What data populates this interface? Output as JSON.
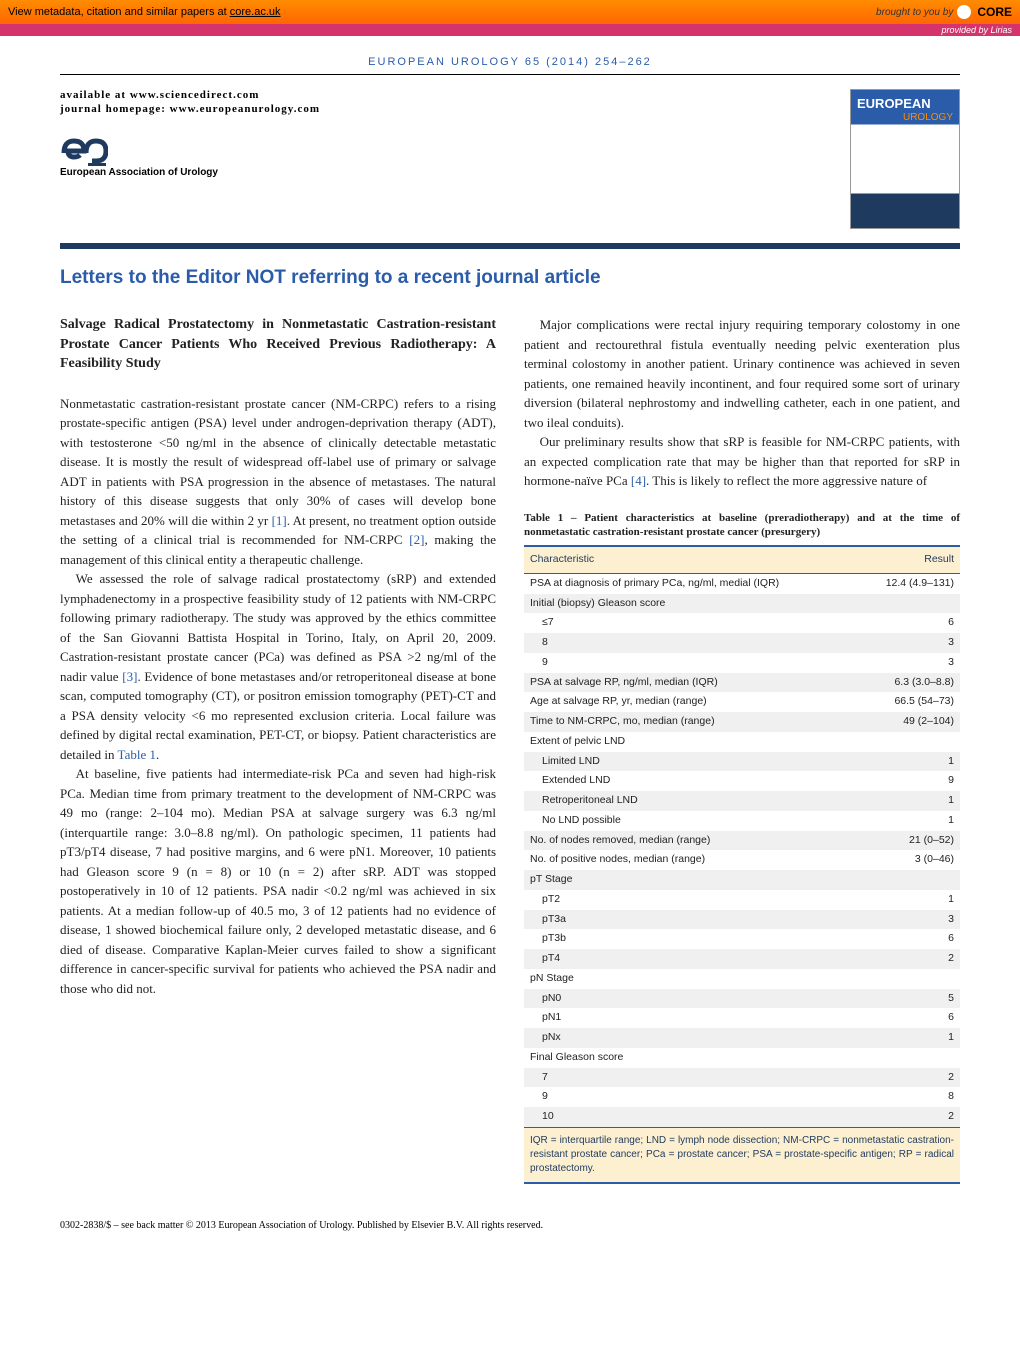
{
  "banner": {
    "left_prefix": "View metadata, citation and similar papers at ",
    "left_link": "core.ac.uk",
    "right_prefix": "brought to you by",
    "core_label": "CORE",
    "provided_by": "provided by Lirias"
  },
  "journal_ref": "EUROPEAN UROLOGY 65 (2014) 254–262",
  "masthead": {
    "available": "available at www.sciencedirect.com",
    "homepage": "journal homepage: www.europeanurology.com",
    "org": "European Association of Urology",
    "cover_title": "EUROPEAN",
    "cover_sub": "UROLOGY"
  },
  "section_title": "Letters to the Editor NOT referring to a recent journal article",
  "article": {
    "title": "Salvage Radical Prostatectomy in Nonmetastatic Castration-resistant Prostate Cancer Patients Who Received Previous Radiotherapy: A Feasibility Study",
    "p1a": "Nonmetastatic castration-resistant prostate cancer (NM-CRPC) refers to a rising prostate-specific antigen (PSA) level under androgen-deprivation therapy (ADT), with testosterone <50 ng/ml in the absence of clinically detectable metastatic disease. It is mostly the result of widespread off-label use of primary or salvage ADT in patients with PSA progression in the absence of metastases. The natural history of this disease suggests that only 30% of cases will develop bone metastases and 20% will die within 2 yr ",
    "ref1": "[1]",
    "p1b": ". At present, no treatment option outside the setting of a clinical trial is recommended for NM-CRPC ",
    "ref2": "[2]",
    "p1c": ", making the management of this clinical entity a therapeutic challenge.",
    "p2a": "We assessed the role of salvage radical prostatectomy (sRP) and extended lymphadenectomy in a prospective feasibility study of 12 patients with NM-CRPC following primary radiotherapy. The study was approved by the ethics committee of the San Giovanni Battista Hospital in Torino, Italy, on April 20, 2009. Castration-resistant prostate cancer (PCa) was defined as PSA >2 ng/ml of the nadir value ",
    "ref3": "[3]",
    "p2b": ". Evidence of bone metastases and/or retroperitoneal disease at bone scan, computed tomography (CT), or positron emission tomography (PET)-CT and a PSA density velocity <6 mo represented exclusion criteria. Local failure was defined by digital rectal examination, PET-CT, or biopsy. Patient characteristics are detailed in ",
    "tableref": "Table 1",
    "p2c": ".",
    "p3": "At baseline, five patients had intermediate-risk PCa and seven had high-risk PCa. Median time from primary treatment to the development of NM-CRPC was 49 mo (range: 2–104 mo). Median PSA at salvage surgery was 6.3 ng/ml (interquartile range: 3.0–8.8 ng/ml). On pathologic specimen, 11 patients had pT3/pT4 disease, 7 had positive margins, and 6 were pN1. Moreover, 10 patients had Gleason score 9 (n = 8) or 10 (n = 2) after sRP. ADT was stopped postoperatively in 10 of 12 patients. PSA nadir <0.2 ng/ml was achieved in six patients. At a median follow-up of 40.5 mo, 3 of 12 patients had no evidence of disease, 1 showed biochemical failure only, 2 developed metastatic disease, and 6 died of disease. Comparative Kaplan-Meier curves failed to show a significant difference in cancer-specific survival for patients who achieved the PSA nadir and those who did not.",
    "p4": "Major complications were rectal injury requiring temporary colostomy in one patient and rectourethral fistula eventually needing pelvic exenteration plus terminal colostomy in another patient. Urinary continence was achieved in seven patients, one remained heavily incontinent, and four required some sort of urinary diversion (bilateral nephrostomy and indwelling catheter, each in one patient, and two ileal conduits).",
    "p5a": "Our preliminary results show that sRP is feasible for NM-CRPC patients, with an expected complication rate that may be higher than that reported for sRP in hormone-naïve PCa ",
    "ref4": "[4]",
    "p5b": ". This is likely to reflect the more aggressive nature of"
  },
  "table": {
    "caption": "Table 1 – Patient characteristics at baseline (preradiotherapy) and at the time of nonmetastatic castration-resistant prostate cancer (presurgery)",
    "head_char": "Characteristic",
    "head_res": "Result",
    "rows": [
      {
        "c": "PSA at diagnosis of primary PCa, ng/ml, medial (IQR)",
        "r": "12.4 (4.9–131)",
        "i": false
      },
      {
        "c": "Initial (biopsy) Gleason score",
        "r": "",
        "i": false
      },
      {
        "c": "≤7",
        "r": "6",
        "i": true
      },
      {
        "c": "8",
        "r": "3",
        "i": true
      },
      {
        "c": "9",
        "r": "3",
        "i": true
      },
      {
        "c": "PSA at salvage RP, ng/ml, median (IQR)",
        "r": "6.3 (3.0–8.8)",
        "i": false
      },
      {
        "c": "Age at salvage RP, yr, median (range)",
        "r": "66.5 (54–73)",
        "i": false
      },
      {
        "c": "Time to NM-CRPC, mo, median (range)",
        "r": "49 (2–104)",
        "i": false
      },
      {
        "c": "Extent of pelvic LND",
        "r": "",
        "i": false
      },
      {
        "c": "Limited LND",
        "r": "1",
        "i": true
      },
      {
        "c": "Extended LND",
        "r": "9",
        "i": true
      },
      {
        "c": "Retroperitoneal LND",
        "r": "1",
        "i": true
      },
      {
        "c": "No LND possible",
        "r": "1",
        "i": true
      },
      {
        "c": "No. of nodes removed, median (range)",
        "r": "21 (0–52)",
        "i": false
      },
      {
        "c": "No. of positive nodes, median (range)",
        "r": "3 (0–46)",
        "i": false
      },
      {
        "c": "pT Stage",
        "r": "",
        "i": false
      },
      {
        "c": "pT2",
        "r": "1",
        "i": true
      },
      {
        "c": "pT3a",
        "r": "3",
        "i": true
      },
      {
        "c": "pT3b",
        "r": "6",
        "i": true
      },
      {
        "c": "pT4",
        "r": "2",
        "i": true
      },
      {
        "c": "pN Stage",
        "r": "",
        "i": false
      },
      {
        "c": "pN0",
        "r": "5",
        "i": true
      },
      {
        "c": "pN1",
        "r": "6",
        "i": true
      },
      {
        "c": "pNx",
        "r": "1",
        "i": true
      },
      {
        "c": "Final Gleason score",
        "r": "",
        "i": false
      },
      {
        "c": "7",
        "r": "2",
        "i": true
      },
      {
        "c": "9",
        "r": "8",
        "i": true
      },
      {
        "c": "10",
        "r": "2",
        "i": true
      }
    ],
    "footer": "IQR = interquartile range; LND = lymph node dissection; NM-CRPC = nonmetastatic castration-resistant prostate cancer; PCa = prostate cancer; PSA = prostate-specific antigen; RP = radical prostatectomy."
  },
  "footer": "0302-2838/$ – see back matter © 2013 European Association of Urology. Published by Elsevier B.V. All rights reserved."
}
